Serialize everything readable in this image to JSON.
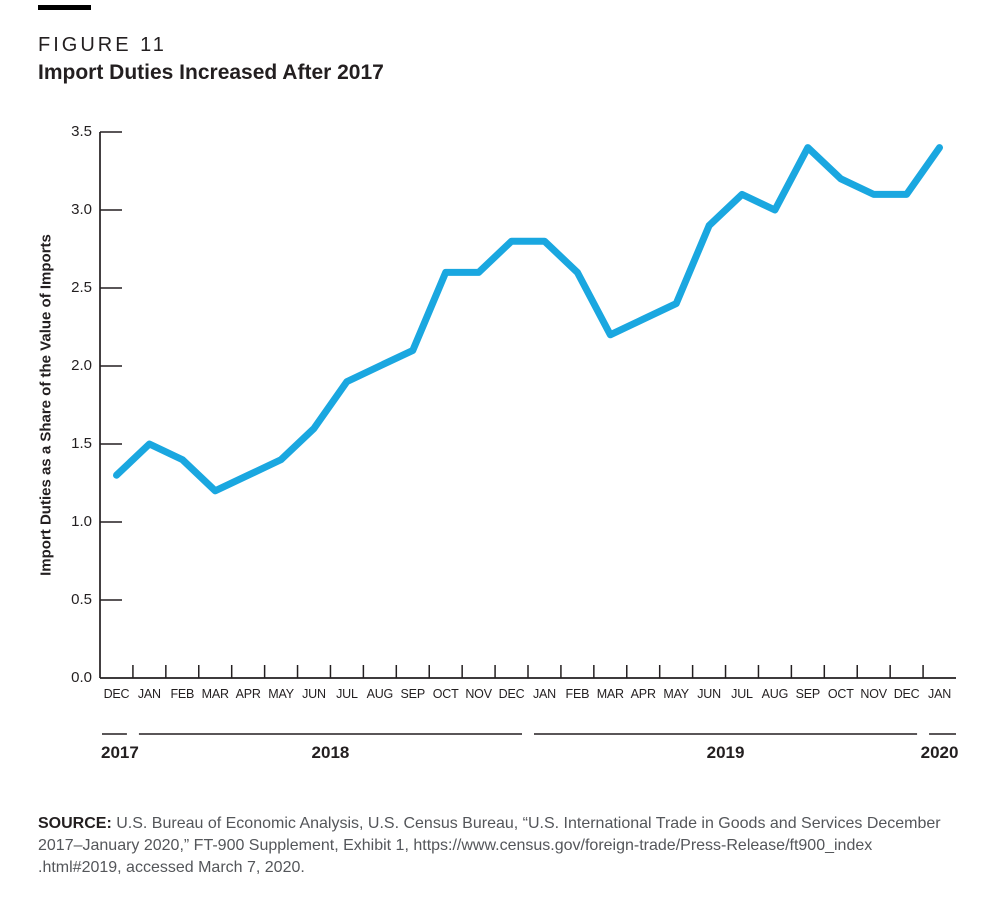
{
  "figure": {
    "label": "FIGURE 11",
    "title": "Import Duties Increased After 2017"
  },
  "chart_data": {
    "type": "line",
    "title": "Import Duties Increased After 2017",
    "xlabel": "",
    "ylabel": "Import Duties as a Share of the Value of Imports",
    "ylim": [
      0,
      3.5
    ],
    "ytick_step": 0.5,
    "ytick_labels": [
      "0.0",
      "0.5",
      "1.0",
      "1.5",
      "2.0",
      "2.5",
      "3.0",
      "3.5"
    ],
    "grid": false,
    "legend_position": "none",
    "line_color": "#1aa7e0",
    "axis_color": "#231f20",
    "categories": [
      "DEC",
      "JAN",
      "FEB",
      "MAR",
      "APR",
      "MAY",
      "JUN",
      "JUL",
      "AUG",
      "SEP",
      "OCT",
      "NOV",
      "DEC",
      "JAN",
      "FEB",
      "MAR",
      "APR",
      "MAY",
      "JUN",
      "JUL",
      "AUG",
      "SEP",
      "OCT",
      "NOV",
      "DEC",
      "JAN"
    ],
    "values": [
      1.3,
      1.5,
      1.4,
      1.2,
      1.3,
      1.4,
      1.6,
      1.9,
      2.0,
      2.1,
      2.6,
      2.6,
      2.8,
      2.8,
      2.6,
      2.2,
      2.3,
      2.4,
      2.9,
      3.1,
      3.0,
      3.4,
      3.2,
      3.1,
      3.1,
      3.4
    ],
    "years": [
      {
        "label": "2017",
        "start": 0,
        "count": 1
      },
      {
        "label": "2018",
        "start": 1,
        "count": 12
      },
      {
        "label": "2019",
        "start": 13,
        "count": 12
      },
      {
        "label": "2020",
        "start": 25,
        "count": 1
      }
    ]
  },
  "source": {
    "label": "SOURCE:",
    "lines": [
      "U.S. Bureau of Economic Analysis, U.S. Census Bureau, “U.S. International Trade in Goods and Services December",
      "2017–January 2020,” FT-900 Supplement, Exhibit 1, https://www.census.gov/foreign-trade/Press-Release/ft900_index",
      ".html#2019, accessed March 7, 2020."
    ]
  }
}
